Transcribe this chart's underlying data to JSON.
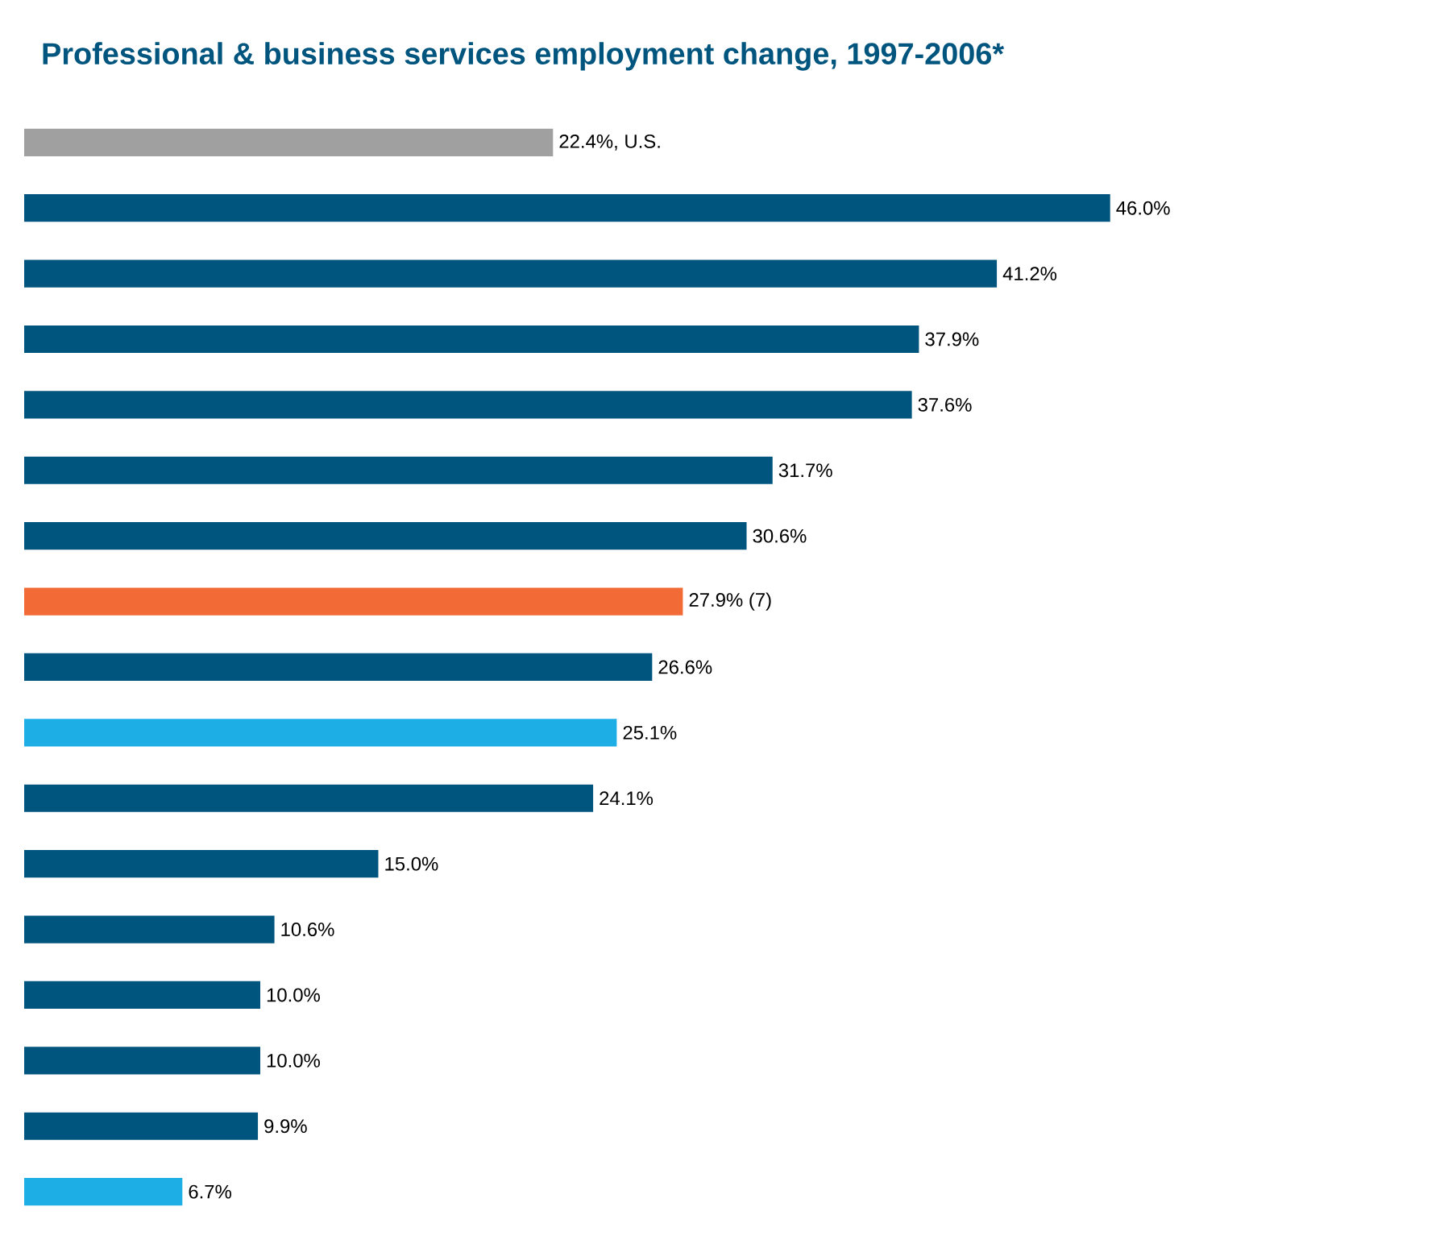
{
  "chart_data": {
    "type": "bar",
    "orientation": "horizontal",
    "title": "Professional & business services employment change, 1997-2006*",
    "categories": [
      "U.S.",
      null,
      null,
      null,
      null,
      null,
      null,
      null,
      null,
      null,
      null,
      null,
      null,
      null,
      null,
      null,
      null
    ],
    "values": [
      22.4,
      46.0,
      41.2,
      37.9,
      37.6,
      31.7,
      30.6,
      27.9,
      26.6,
      25.1,
      24.1,
      15.0,
      10.6,
      10.0,
      10.0,
      9.9,
      6.7
    ],
    "value_labels": [
      "22.4%,",
      "46.0%",
      "41.2%",
      "37.9%",
      "37.6%",
      "31.7%",
      "30.6%",
      "27.9%  (7)",
      "26.6%",
      "25.1%",
      "24.1%",
      "15.0%",
      "10.6%",
      "10.0%",
      "10.0%",
      "9.9%",
      "6.7%"
    ],
    "colors": [
      "#a0a0a0",
      "#00557f",
      "#00557f",
      "#00557f",
      "#00557f",
      "#00557f",
      "#00557f",
      "#f26a36",
      "#00557f",
      "#1eaee6",
      "#00557f",
      "#00557f",
      "#00557f",
      "#00557f",
      "#00557f",
      "#00557f",
      "#1eaee6"
    ]
  }
}
